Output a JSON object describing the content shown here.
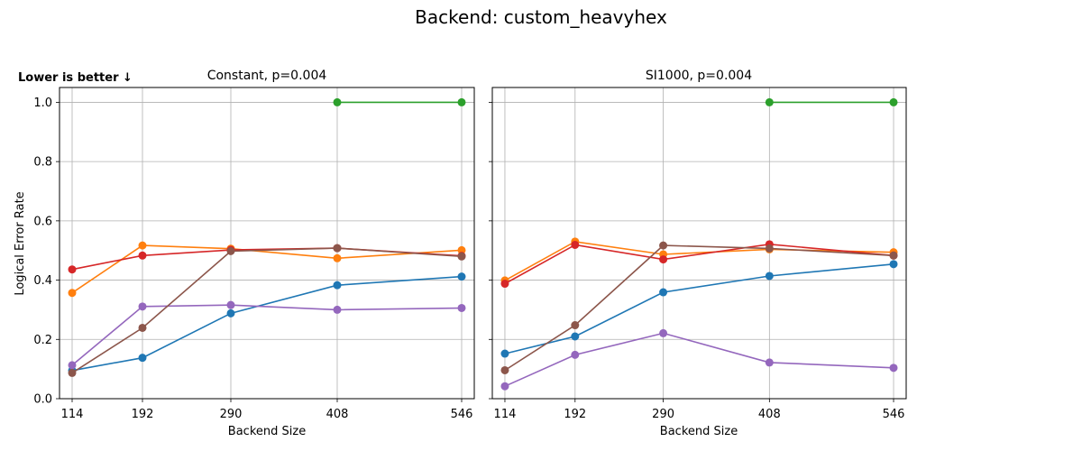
{
  "figure": {
    "suptitle": "Backend: custom_heavyhex",
    "note": "Lower is better ↓"
  },
  "colors": {
    "grid": "#b0b0b0",
    "axes": "#000000",
    "series": [
      "#1f77b4",
      "#ff7f0e",
      "#2ca02c",
      "#d62728",
      "#9467bd",
      "#8c564b"
    ]
  },
  "chart_data": [
    {
      "type": "line",
      "title": "Constant, p=0.004",
      "xlabel": "Backend Size",
      "ylabel": "Logical Error Rate",
      "x": [
        114,
        192,
        290,
        408,
        546
      ],
      "xticks": [
        "114",
        "192",
        "290",
        "408",
        "546"
      ],
      "xlim": [
        100,
        560
      ],
      "ylim": [
        0,
        1.05
      ],
      "yticks": [
        "0.0",
        "0.2",
        "0.4",
        "0.6",
        "0.8",
        "1.0"
      ],
      "grid": true,
      "series": [
        {
          "color": "#1f77b4",
          "values": [
            0.095,
            0.138,
            0.288,
            0.383,
            0.412
          ]
        },
        {
          "color": "#ff7f0e",
          "values": [
            0.357,
            0.517,
            0.506,
            0.474,
            0.501
          ]
        },
        {
          "color": "#2ca02c",
          "values": [
            null,
            null,
            null,
            1.0,
            1.0
          ]
        },
        {
          "color": "#d62728",
          "values": [
            0.436,
            0.483,
            0.502,
            0.508,
            0.482
          ]
        },
        {
          "color": "#9467bd",
          "values": [
            0.113,
            0.311,
            0.316,
            0.3,
            0.306
          ]
        },
        {
          "color": "#8c564b",
          "values": [
            0.087,
            0.239,
            0.498,
            0.508,
            0.48
          ]
        }
      ]
    },
    {
      "type": "line",
      "title": "SI1000, p=0.004",
      "xlabel": "Backend Size",
      "ylabel": "",
      "x": [
        114,
        192,
        290,
        408,
        546
      ],
      "xticks": [
        "114",
        "192",
        "290",
        "408",
        "546"
      ],
      "xlim": [
        100,
        560
      ],
      "ylim": [
        0,
        1.05
      ],
      "yticks": [],
      "grid": true,
      "series": [
        {
          "color": "#1f77b4",
          "values": [
            0.152,
            0.21,
            0.359,
            0.414,
            0.454
          ]
        },
        {
          "color": "#ff7f0e",
          "values": [
            0.399,
            0.53,
            0.487,
            0.504,
            0.494
          ]
        },
        {
          "color": "#2ca02c",
          "values": [
            null,
            null,
            null,
            1.0,
            1.0
          ]
        },
        {
          "color": "#d62728",
          "values": [
            0.388,
            0.519,
            0.47,
            0.521,
            0.483
          ]
        },
        {
          "color": "#9467bd",
          "values": [
            0.042,
            0.148,
            0.221,
            0.122,
            0.104
          ]
        },
        {
          "color": "#8c564b",
          "values": [
            0.096,
            0.248,
            0.517,
            0.507,
            0.483
          ]
        }
      ]
    }
  ]
}
